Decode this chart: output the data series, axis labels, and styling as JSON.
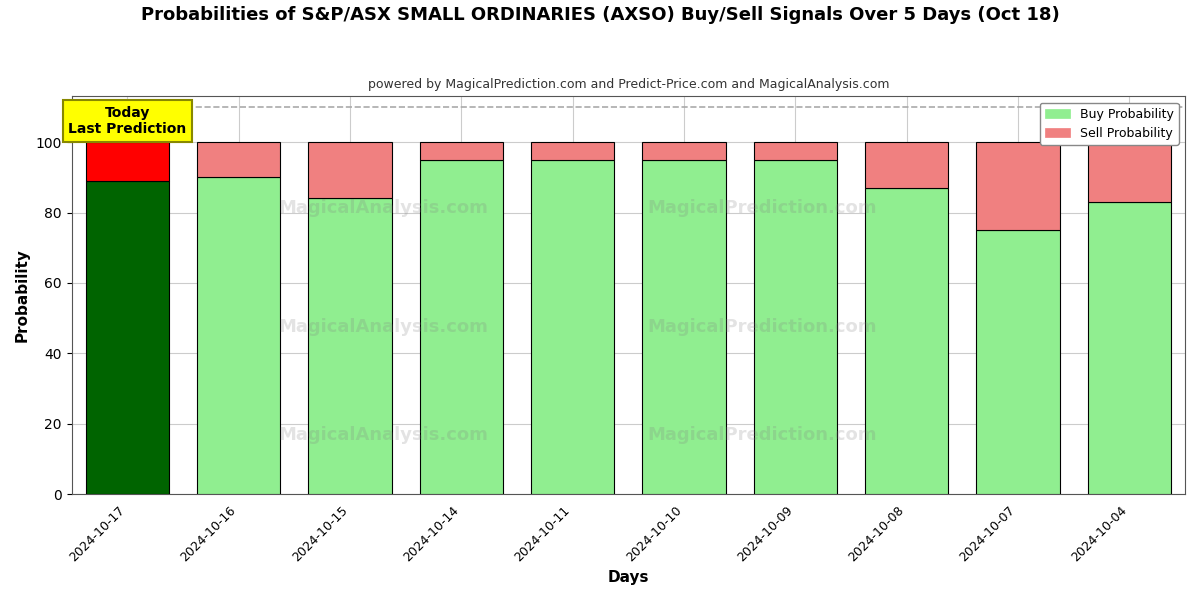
{
  "title": "Probabilities of S&P/ASX SMALL ORDINARIES (AXSO) Buy/Sell Signals Over 5 Days (Oct 18)",
  "subtitle": "powered by MagicalPrediction.com and Predict-Price.com and MagicalAnalysis.com",
  "xlabel": "Days",
  "ylabel": "Probability",
  "dates": [
    "2024-10-17",
    "2024-10-16",
    "2024-10-15",
    "2024-10-14",
    "2024-10-11",
    "2024-10-10",
    "2024-10-09",
    "2024-10-08",
    "2024-10-07",
    "2024-10-04"
  ],
  "buy_probs": [
    89,
    90,
    84,
    95,
    95,
    95,
    95,
    87,
    75,
    83
  ],
  "sell_probs": [
    11,
    10,
    16,
    5,
    5,
    5,
    5,
    13,
    25,
    17
  ],
  "today_bar_buy_color": "#006400",
  "today_bar_sell_color": "#FF0000",
  "other_bar_buy_color": "#90EE90",
  "other_bar_sell_color": "#F08080",
  "bar_edge_color": "#000000",
  "today_annotation_text": "Today\nLast Prediction",
  "today_annotation_bg": "#FFFF00",
  "ylim": [
    0,
    113
  ],
  "yticks": [
    0,
    20,
    40,
    60,
    80,
    100
  ],
  "dashed_line_y": 110,
  "dashed_line_color": "#AAAAAA",
  "grid_color": "#CCCCCC",
  "background_color": "#FFFFFF",
  "legend_buy_color": "#90EE90",
  "legend_sell_color": "#F08080",
  "bar_width": 0.75
}
